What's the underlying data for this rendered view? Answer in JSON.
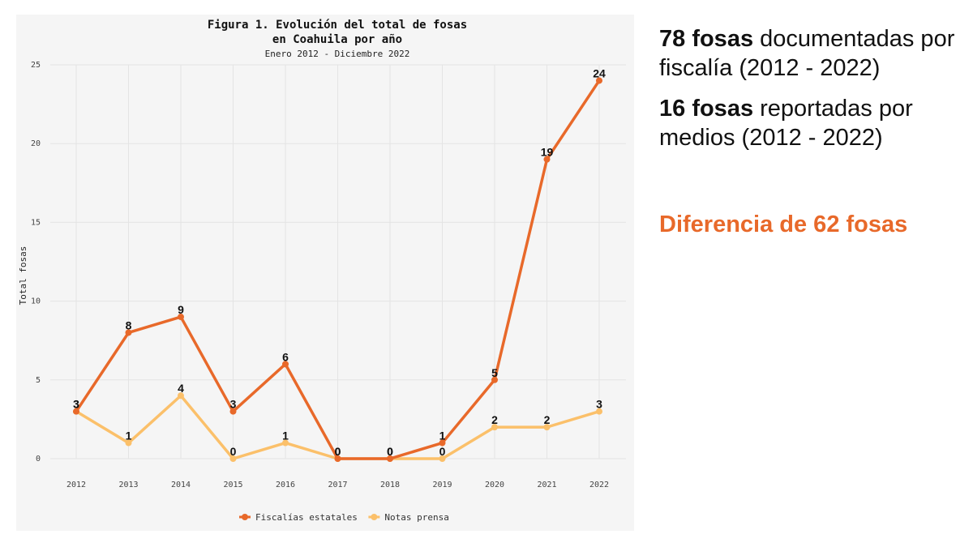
{
  "colors": {
    "fiscalias": "#e8692a",
    "notas": "#fbc06a",
    "accent": "#e8692a"
  },
  "side": {
    "stat1_bold": "78 fosas",
    "stat1_rest": " documentadas por fiscalía (2012 - 2022)",
    "stat2_bold": "16 fosas",
    "stat2_rest": " reportadas por medios (2012 - 2022)",
    "difference": "Diferencia de 62 fosas"
  },
  "chart_data": {
    "type": "line",
    "title_line1": "Figura 1. Evolución del total de fosas",
    "title_line2": "en Coahuila por año",
    "subtitle": "Enero 2012 - Diciembre 2022",
    "xlabel": "",
    "ylabel": "Total fosas",
    "x": [
      "2012",
      "2013",
      "2014",
      "2015",
      "2016",
      "2017",
      "2018",
      "2019",
      "2020",
      "2021",
      "2022"
    ],
    "ylim": [
      0,
      25
    ],
    "yticks": [
      0,
      5,
      10,
      15,
      20,
      25
    ],
    "grid": true,
    "legend_position": "bottom",
    "series": [
      {
        "name": "Fiscalías estatales",
        "color": "#e8692a",
        "values": [
          3,
          8,
          9,
          3,
          6,
          0,
          0,
          1,
          5,
          19,
          24
        ]
      },
      {
        "name": "Notas prensa",
        "color": "#fbc06a",
        "values": [
          3,
          1,
          4,
          0,
          1,
          0,
          0,
          0,
          2,
          2,
          3
        ]
      }
    ]
  }
}
